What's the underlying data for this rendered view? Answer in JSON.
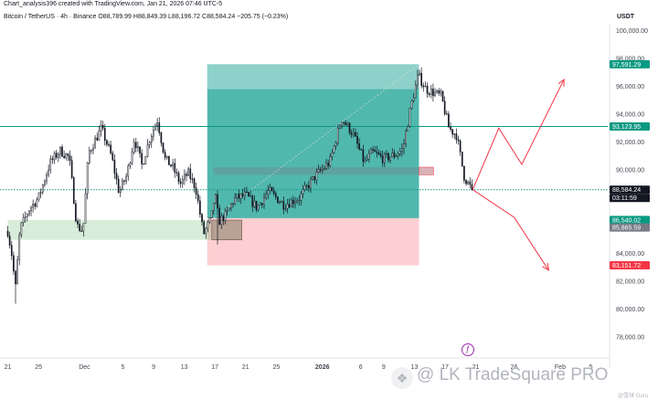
{
  "header": {
    "line1": "Chart_analysis396 created with TradingView.com, Jan 21, 2026 07:46 UTC-5",
    "line2": "Bitcoin / TetherUS · 4h · Binance  O88,789.99  H88,849.39  L88,196.72  C88,584.24  −205.75 (−0.23%)",
    "currency": "USDT"
  },
  "watermark": {
    "text": "LK TradeSquare PRO",
    "small": "@雪球 Guru"
  },
  "colors": {
    "candle": "#131722",
    "target_zone": "#26a69a",
    "stop_zone": "#f7525f",
    "support_box": "#4caf50",
    "order_block": "#787b86",
    "level_line": "#089981",
    "arrows": "#f23645",
    "price_badge": "#131722",
    "target_badge": "#089981",
    "stop_badge": "#f23645",
    "gray_badge": "#787b86"
  },
  "chart_data": {
    "type": "candlestick",
    "symbol": "Bitcoin / TetherUS",
    "timeframe": "4h",
    "exchange": "Binance",
    "ylim": [
      76500,
      100500
    ],
    "y_ticks": [
      78000,
      80000,
      82000,
      84000,
      86000,
      88000,
      90000,
      92000,
      94000,
      96000,
      98000,
      100000
    ],
    "x_ticks": [
      "21",
      "25",
      "Dec",
      "5",
      "9",
      "13",
      "17",
      "21",
      "25",
      "2026",
      "6",
      "9",
      "13",
      "17",
      "21",
      "26",
      "Feb",
      "5"
    ],
    "x_tick_day_index": [
      0,
      4,
      10,
      15,
      19,
      23,
      27,
      31,
      35,
      41,
      46,
      49,
      53,
      57,
      61,
      66,
      72,
      76
    ],
    "candle_count": 240,
    "close_path": [
      {
        "d": 0,
        "p": 85600
      },
      {
        "d": 0.5,
        "p": 84000
      },
      {
        "d": 1.0,
        "p": 81500
      },
      {
        "d": 1.6,
        "p": 85800
      },
      {
        "d": 2.8,
        "p": 87200
      },
      {
        "d": 4.0,
        "p": 88000
      },
      {
        "d": 5.5,
        "p": 90500
      },
      {
        "d": 6.8,
        "p": 91400
      },
      {
        "d": 8.0,
        "p": 90900
      },
      {
        "d": 9.0,
        "p": 86000
      },
      {
        "d": 9.8,
        "p": 85600
      },
      {
        "d": 10.5,
        "p": 91200
      },
      {
        "d": 12.2,
        "p": 93000
      },
      {
        "d": 13.5,
        "p": 91000
      },
      {
        "d": 14.5,
        "p": 88400
      },
      {
        "d": 15.5,
        "p": 89600
      },
      {
        "d": 16.5,
        "p": 92300
      },
      {
        "d": 17.5,
        "p": 90300
      },
      {
        "d": 18.5,
        "p": 92300
      },
      {
        "d": 19.5,
        "p": 93600
      },
      {
        "d": 20.5,
        "p": 90800
      },
      {
        "d": 21.5,
        "p": 90200
      },
      {
        "d": 22.5,
        "p": 89000
      },
      {
        "d": 23.5,
        "p": 89800
      },
      {
        "d": 24.5,
        "p": 88700
      },
      {
        "d": 25.5,
        "p": 85400
      },
      {
        "d": 26.5,
        "p": 86500
      },
      {
        "d": 27.0,
        "p": 88300
      },
      {
        "d": 27.5,
        "p": 86300
      },
      {
        "d": 28.5,
        "p": 86800
      },
      {
        "d": 29.5,
        "p": 87900
      },
      {
        "d": 31.0,
        "p": 88200
      },
      {
        "d": 32.5,
        "p": 87300
      },
      {
        "d": 34.0,
        "p": 88500
      },
      {
        "d": 36.0,
        "p": 87500
      },
      {
        "d": 38.0,
        "p": 88000
      },
      {
        "d": 40.0,
        "p": 89500
      },
      {
        "d": 42.0,
        "p": 90600
      },
      {
        "d": 43.5,
        "p": 93700
      },
      {
        "d": 45.0,
        "p": 92600
      },
      {
        "d": 46.5,
        "p": 90500
      },
      {
        "d": 47.5,
        "p": 91300
      },
      {
        "d": 49.0,
        "p": 90800
      },
      {
        "d": 50.5,
        "p": 91100
      },
      {
        "d": 51.5,
        "p": 91500
      },
      {
        "d": 52.5,
        "p": 94500
      },
      {
        "d": 53.5,
        "p": 96800
      },
      {
        "d": 54.5,
        "p": 95800
      },
      {
        "d": 56.5,
        "p": 95300
      },
      {
        "d": 57.5,
        "p": 93000
      },
      {
        "d": 58.5,
        "p": 92500
      },
      {
        "d": 59.5,
        "p": 89500
      },
      {
        "d": 60.5,
        "p": 88584
      }
    ],
    "levels": [
      {
        "name": "Resistance line",
        "price": 93123.95
      },
      {
        "name": "Current price line",
        "price": 88584.24
      }
    ],
    "zones": [
      {
        "name": "Target zone",
        "from_day": 26,
        "to_day": 53.6,
        "price_top": 97591.29,
        "price_bottom": 86540.02
      },
      {
        "name": "Stop zone",
        "from_day": 26,
        "to_day": 53.6,
        "price_top": 86540.02,
        "price_bottom": 83151.72
      },
      {
        "name": "Support box",
        "from_day": 0,
        "to_day": 30.5,
        "price_top": 86400,
        "price_bottom": 84980
      },
      {
        "name": "Order block",
        "from_day": 26.8,
        "to_day": 55.5,
        "price_top": 90200,
        "price_bottom": 89650
      }
    ],
    "projections": [
      {
        "name": "Bullish path",
        "points": [
          {
            "d": 60.6,
            "p": 88584
          },
          {
            "d": 64,
            "p": 93000
          },
          {
            "d": 67,
            "p": 90400
          },
          {
            "d": 72.5,
            "p": 96500
          }
        ]
      },
      {
        "name": "Bearish path",
        "points": [
          {
            "d": 60.6,
            "p": 88584
          },
          {
            "d": 66,
            "p": 86600
          },
          {
            "d": 70.5,
            "p": 82800
          }
        ]
      }
    ],
    "price_labels": [
      {
        "text": "97,591.29",
        "kind": "target",
        "price": 97591.29
      },
      {
        "text": "93,123.95",
        "kind": "level",
        "price": 93123.95
      },
      {
        "text": "88,584.24",
        "kind": "current",
        "price": 88584.24
      },
      {
        "text": "03:11:59",
        "kind": "countdown",
        "price": 88584.24
      },
      {
        "text": "86,540.02",
        "kind": "entry",
        "price": 86540.02
      },
      {
        "text": "85,865.59",
        "kind": "gray",
        "price": 85865.59
      },
      {
        "text": "83,151.72",
        "kind": "stop",
        "price": 83151.72
      }
    ]
  }
}
